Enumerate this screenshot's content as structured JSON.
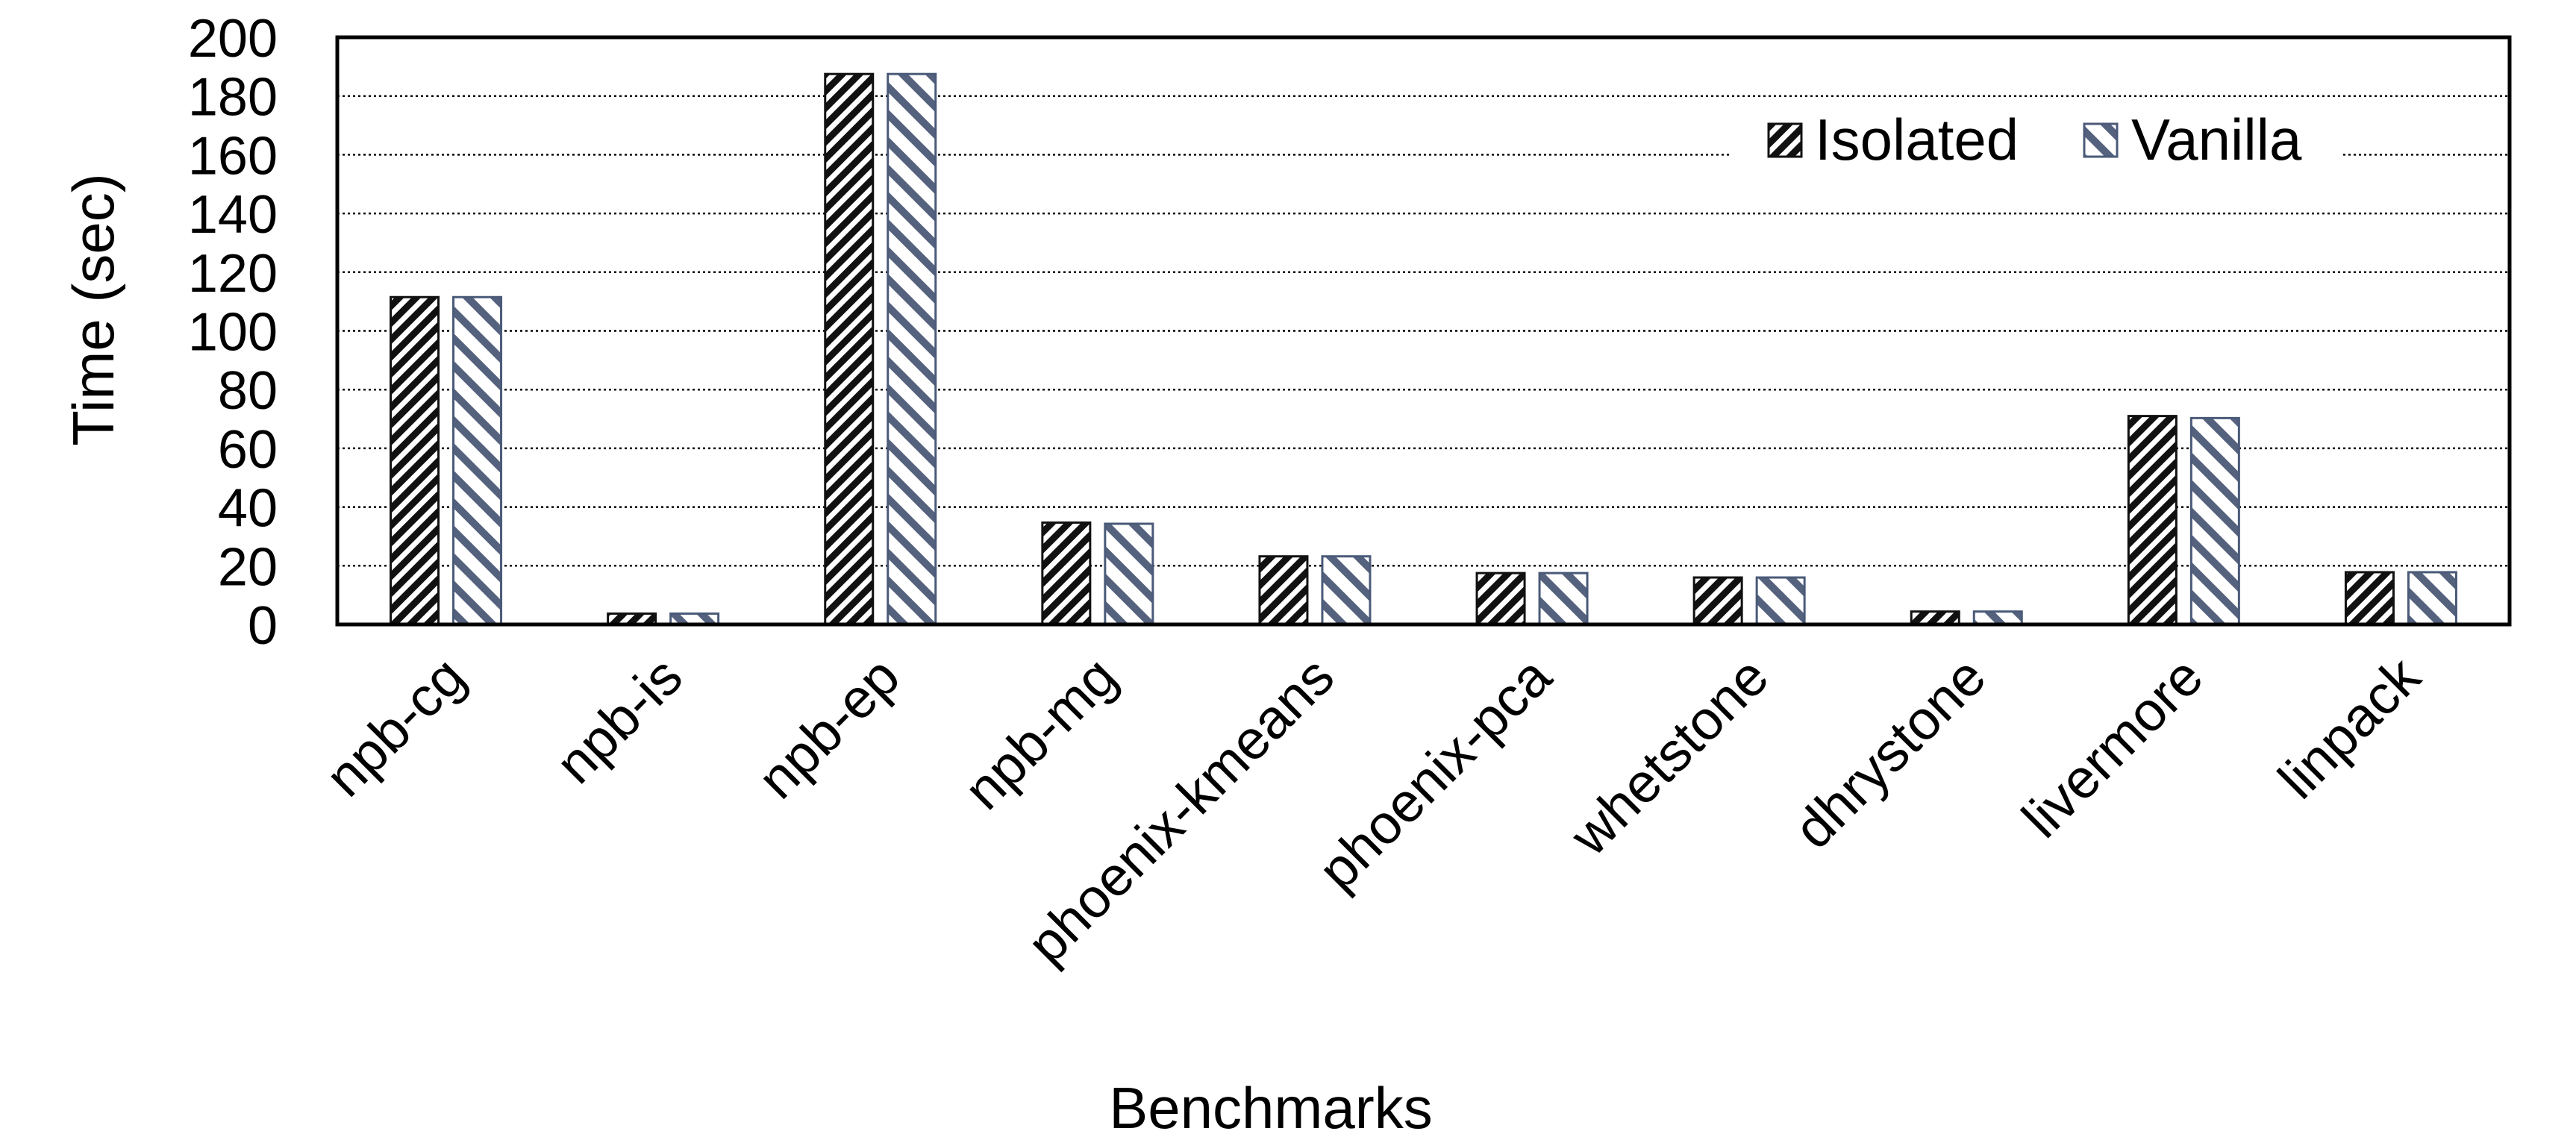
{
  "chart_data": {
    "type": "bar",
    "title": "",
    "xlabel": "Benchmarks",
    "ylabel": "Time (sec)",
    "ylim": [
      0,
      200
    ],
    "yticks": [
      0,
      20,
      40,
      60,
      80,
      100,
      120,
      140,
      160,
      180,
      200
    ],
    "grid": true,
    "legend_position": "top-right",
    "categories": [
      "npb-cg",
      "npb-is",
      "npb-ep",
      "npb-mg",
      "phoenix-kmeans",
      "phoenix-pca",
      "whetstone",
      "dhrystone",
      "livermore",
      "linpack"
    ],
    "series": [
      {
        "name": "Isolated",
        "color": "#1a1a1a",
        "values": [
          111.5,
          3.7,
          187.5,
          34.7,
          23.2,
          17.5,
          16.0,
          4.4,
          71.0,
          17.8
        ]
      },
      {
        "name": "Vanilla",
        "color": "#4a5a78",
        "values": [
          111.5,
          3.7,
          187.5,
          34.3,
          23.2,
          17.5,
          16.0,
          4.4,
          70.3,
          17.8
        ]
      }
    ]
  }
}
